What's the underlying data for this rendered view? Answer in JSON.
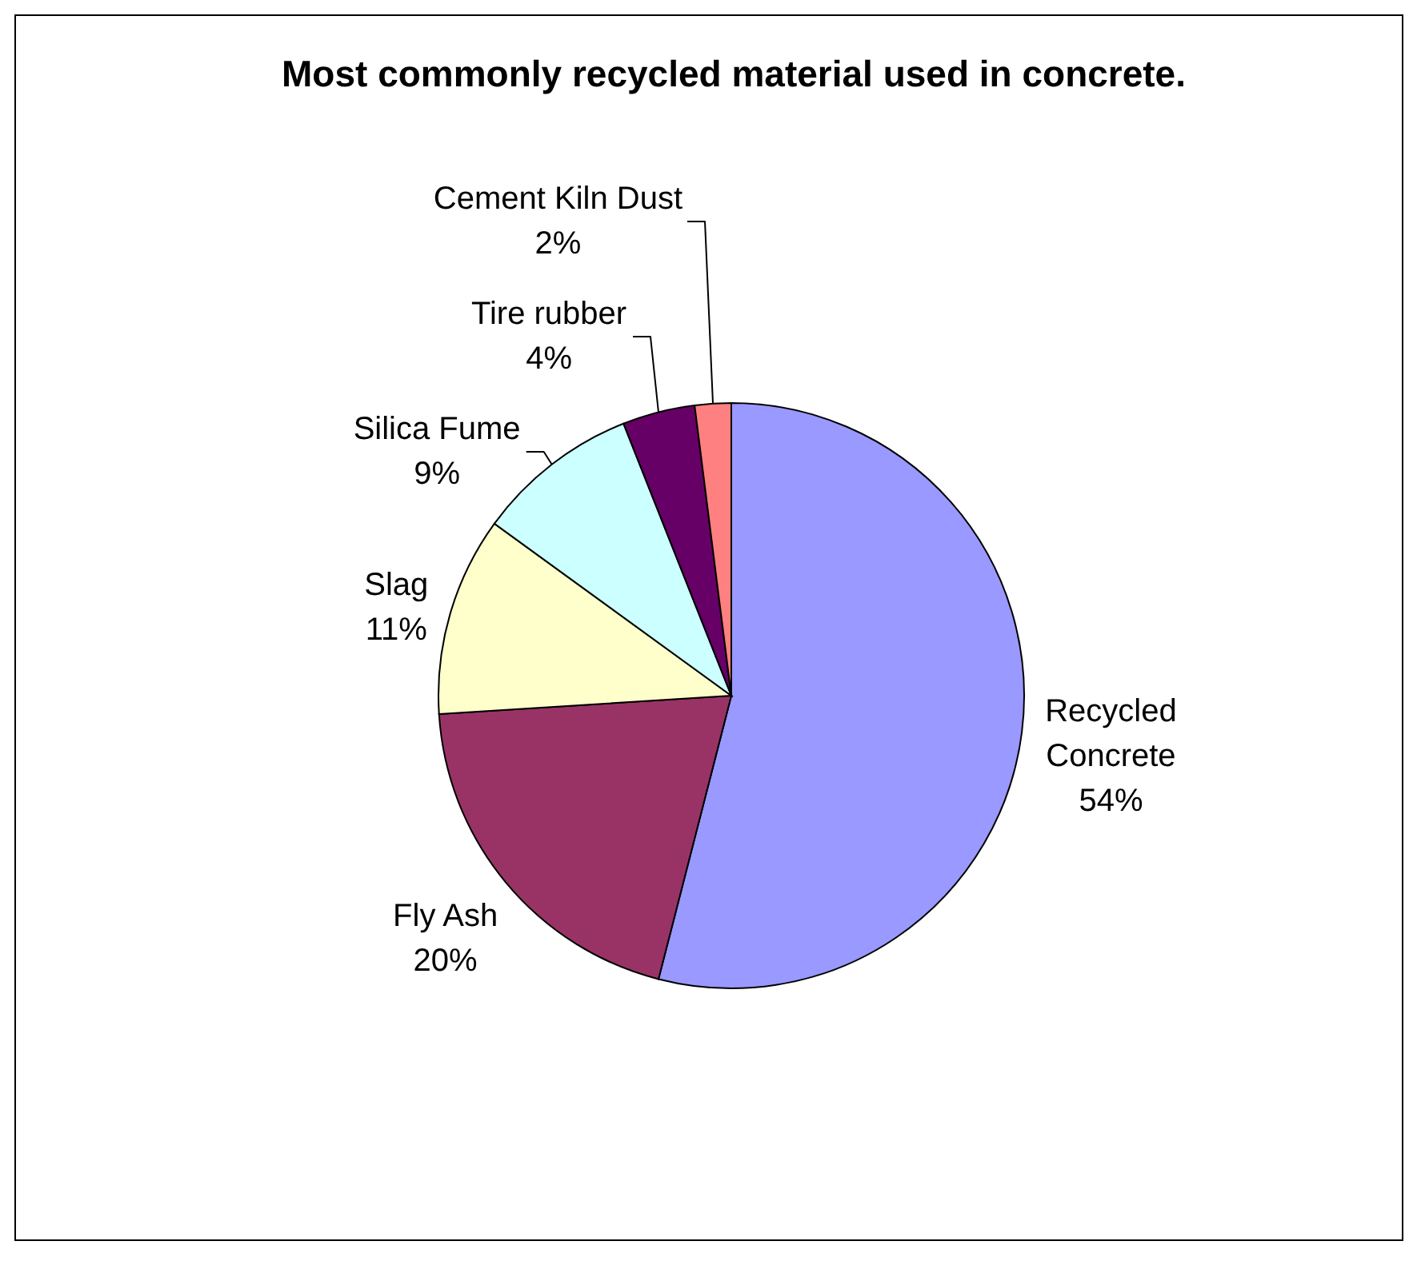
{
  "chart_data": {
    "type": "pie",
    "title": "Most commonly recycled material used in concrete.",
    "categories": [
      "Recycled Concrete",
      "Fly Ash",
      "Slag",
      "Silica Fume",
      "Tire rubber",
      "Cement Kiln Dust"
    ],
    "values": [
      54,
      20,
      11,
      9,
      4,
      2
    ],
    "colors": [
      "#9999ff",
      "#993366",
      "#ffffcc",
      "#ccffff",
      "#660066",
      "#ff8080"
    ],
    "value_labels": [
      "54%",
      "20%",
      "11%",
      "9%",
      "4%",
      "2%"
    ]
  }
}
